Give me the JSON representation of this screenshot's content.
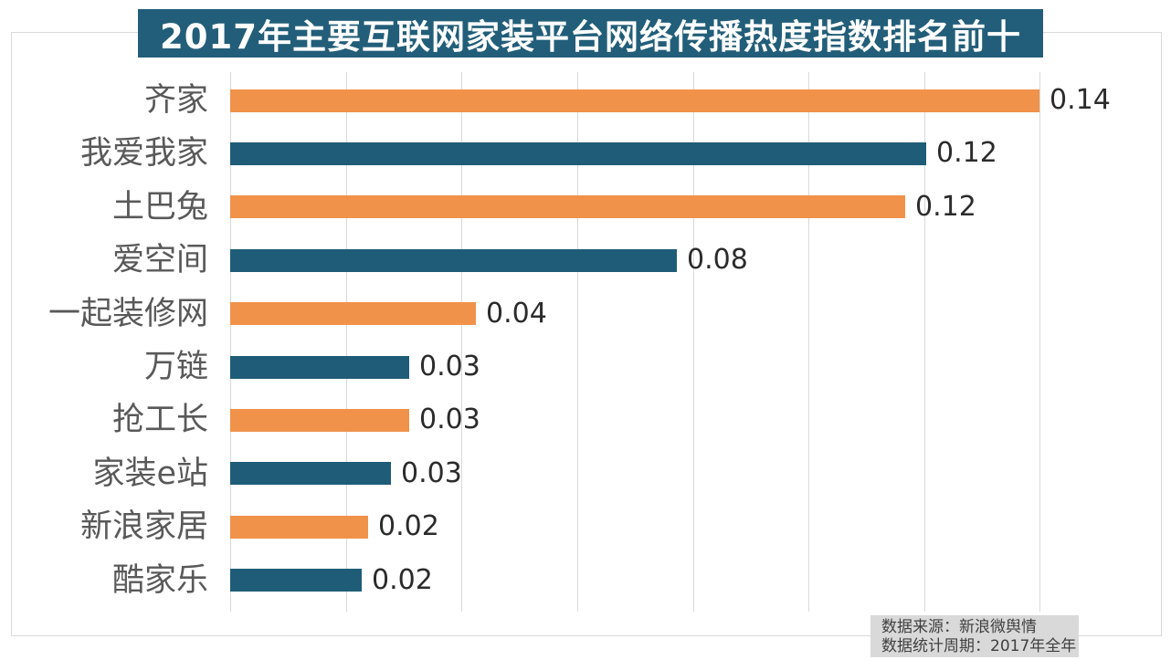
{
  "title": {
    "text": "2017年主要互联网家装平台网络传播热度指数排名前十"
  },
  "source_note": {
    "line1": "数据来源：新浪微舆情",
    "line2": "数据统计周期：2017年全年"
  },
  "chart_data": {
    "type": "bar",
    "orientation": "horizontal",
    "title": "2017年主要互联网家装平台网络传播热度指数排名前十",
    "categories": [
      "齐家",
      "我爱我家",
      "土巴兔",
      "爱空间",
      "一起装修网",
      "万链",
      "抢工长",
      "家装e站",
      "新浪家居",
      "酷家乐"
    ],
    "values": [
      0.14,
      0.12,
      0.12,
      0.08,
      0.04,
      0.03,
      0.03,
      0.03,
      0.02,
      0.02
    ],
    "value_labels": [
      "0.14",
      "0.12",
      "0.12",
      "0.08",
      "0.04",
      "0.03",
      "0.03",
      "0.03",
      "0.02",
      "0.02"
    ],
    "visual_values": [
      0.14,
      0.1204,
      0.1167,
      0.0772,
      0.0425,
      0.031,
      0.031,
      0.0278,
      0.0238,
      0.0227
    ],
    "xlabel": "",
    "ylabel": "",
    "xlim": [
      0,
      0.16
    ],
    "gridline_interval": 0.02,
    "gridline_max": 0.14,
    "grid": "on",
    "legend": "none",
    "bar_palette": [
      "#F0924A",
      "#1F5C78"
    ],
    "palette_note": "bars alternate orange/blue from top, starting orange"
  },
  "colors": {
    "banner_bg": "#225E79",
    "banner_text": "#FFFFFF",
    "orange_bar": "#F0924A",
    "blue_bar": "#1F5C78",
    "gridline": "#D9D9D9",
    "frame_border": "#D9D9D9",
    "category_label": "#595959",
    "value_label": "#2B2B2B",
    "source_bg": "#D9D9D9",
    "source_text": "#404040",
    "background": "#FFFFFF"
  }
}
